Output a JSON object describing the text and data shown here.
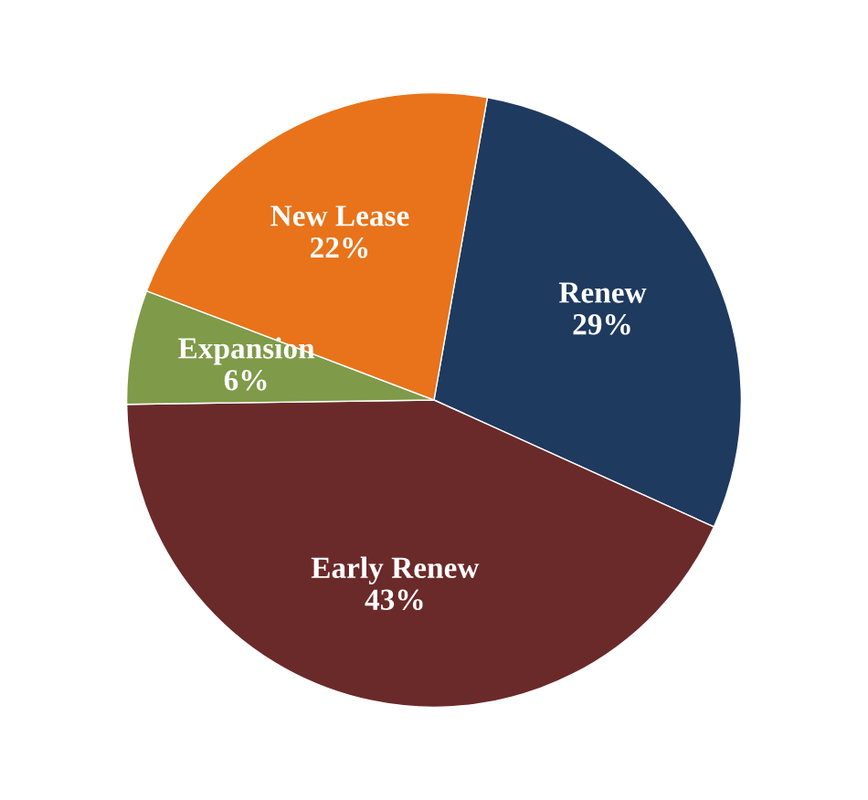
{
  "chart_data": {
    "type": "pie",
    "categories": [
      "Renew",
      "Early Renew",
      "Expansion",
      "New Lease"
    ],
    "values": [
      29,
      43,
      6,
      22
    ],
    "colors": [
      "#1f3a5f",
      "#6b2a2a",
      "#7f9a48",
      "#e8731a"
    ],
    "value_labels": [
      "29%",
      "43%",
      "6%",
      "22%"
    ]
  }
}
